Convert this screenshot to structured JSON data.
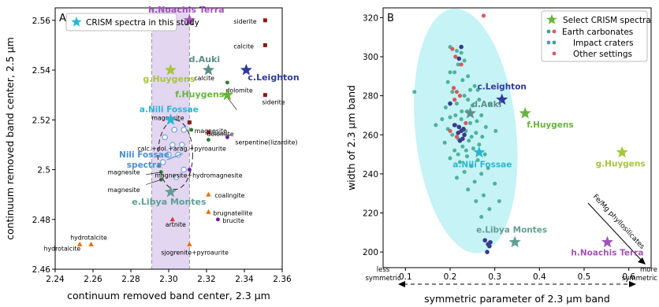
{
  "colors": {
    "carbonate": "#8b1a1a",
    "serpentine": "#2e7d32",
    "hydrotalcite": "#ef6c00",
    "purple_mineral": "#6a1b9a",
    "cyan_star": "#29b6d6",
    "band": "#d9c8ec",
    "ellipse_b": "#c6f3f5",
    "blue_pt": "#5b8fd6",
    "red_pt": "#d65a5a",
    "teal_pt": "#3aa48c"
  },
  "chart_data": [
    {
      "type": "scatter",
      "panel_label": "A",
      "xlabel": "continuum removed band center, 2.3 µm",
      "ylabel": "continuum removed band center, 2.5 µm",
      "xlim": [
        2.24,
        2.36
      ],
      "ylim": [
        2.46,
        2.565
      ],
      "xticks": [
        "2.24",
        "2.26",
        "2.28",
        "2.30",
        "2.32",
        "2.34",
        "2.36"
      ],
      "yticks": [
        "2.46",
        "2.48",
        "2.5",
        "2.52",
        "2.54",
        "2.56"
      ],
      "shaded_band": [
        2.291,
        2.311
      ],
      "legend": {
        "label": "CRISM spectra in this study",
        "position": "top-left"
      },
      "crism_stars": [
        {
          "label": "h.Noachis Terra",
          "x": 2.311,
          "y": 2.56,
          "color": "#a452b8"
        },
        {
          "label": "c.Leighton",
          "x": 2.341,
          "y": 2.54,
          "color": "#2f3a9a"
        },
        {
          "label": "d.Auki",
          "x": 2.321,
          "y": 2.54,
          "color": "#5c8e8a"
        },
        {
          "label": "g.Huygens",
          "x": 2.301,
          "y": 2.54,
          "color": "#a6c63a"
        },
        {
          "label": "f.Huygens",
          "x": 2.331,
          "y": 2.53,
          "color": "#66b53c"
        },
        {
          "label": "a.Nili Fossae",
          "x": 2.301,
          "y": 2.52,
          "color": "#29b6d6"
        },
        {
          "label": "e.Libya Montes",
          "x": 2.301,
          "y": 2.491,
          "color": "#5f9e94"
        }
      ],
      "nili_cluster_label": [
        "Nili Fossae",
        "spectra"
      ],
      "nili_points": [
        {
          "x": 2.303,
          "y": 2.516
        },
        {
          "x": 2.308,
          "y": 2.516
        },
        {
          "x": 2.298,
          "y": 2.513
        },
        {
          "x": 2.302,
          "y": 2.51
        },
        {
          "x": 2.307,
          "y": 2.51
        },
        {
          "x": 2.3,
          "y": 2.506
        },
        {
          "x": 2.305,
          "y": 2.506
        },
        {
          "x": 2.297,
          "y": 2.503
        },
        {
          "x": 2.308,
          "y": 2.5
        },
        {
          "x": 2.304,
          "y": 2.497
        }
      ],
      "reference_minerals": [
        {
          "label": "siderite",
          "x": 2.351,
          "y": 2.56,
          "marker": "square",
          "color": "#8b1a1a"
        },
        {
          "label": "calcite",
          "x": 2.351,
          "y": 2.55,
          "marker": "square",
          "color": "#8b1a1a"
        },
        {
          "label": "calcite",
          "x": 2.331,
          "y": 2.535,
          "marker": "circle",
          "color": "#2e7d32"
        },
        {
          "label": "dolomite",
          "x": 2.331,
          "y": 2.53,
          "marker": "circle",
          "color": "#2e7d32"
        },
        {
          "label": "siderite",
          "x": 2.351,
          "y": 2.53,
          "marker": "square",
          "color": "#8b1a1a"
        },
        {
          "label": "magnesite",
          "x": 2.311,
          "y": 2.519,
          "marker": "square",
          "color": "#8b1a1a"
        },
        {
          "label": "magnesite",
          "x": 2.312,
          "y": 2.516,
          "marker": "circle",
          "color": "#2e7d32"
        },
        {
          "label": "dolomite",
          "x": 2.321,
          "y": 2.515,
          "marker": "square",
          "color": "#8b1a1a"
        },
        {
          "label": "serpentine(lizardite)",
          "x": 2.331,
          "y": 2.513,
          "marker": "circle",
          "color": "#6a1b9a"
        },
        {
          "label": "calc.+dol.+arag.+pyroaurite",
          "x": 2.321,
          "y": 2.512,
          "marker": "circle",
          "color": "#2e7d32"
        },
        {
          "label": "magnesite",
          "x": 2.296,
          "y": 2.499,
          "marker": "circle",
          "color": "#2e7d32"
        },
        {
          "label": "magnesite+hydromagnesite",
          "x": 2.311,
          "y": 2.5,
          "marker": "circle",
          "color": "#6a1b9a"
        },
        {
          "label": "magnesite",
          "x": 2.296,
          "y": 2.496,
          "marker": "circle",
          "color": "#2e7d32"
        },
        {
          "label": "coalingite",
          "x": 2.321,
          "y": 2.49,
          "marker": "triangle",
          "color": "#ef6c00"
        },
        {
          "label": "brugnatellite",
          "x": 2.321,
          "y": 2.483,
          "marker": "triangle",
          "color": "#ef6c00"
        },
        {
          "label": "brucite",
          "x": 2.326,
          "y": 2.48,
          "marker": "circle",
          "color": "#6a1b9a"
        },
        {
          "label": "artnite",
          "x": 2.302,
          "y": 2.48,
          "marker": "triangle",
          "color": "#e53935"
        },
        {
          "label": "hydrotalcite",
          "x": 2.253,
          "y": 2.47,
          "marker": "triangle",
          "color": "#ef6c00"
        },
        {
          "label": "hydrotalcite",
          "x": 2.259,
          "y": 2.47,
          "marker": "triangle",
          "color": "#ef6c00"
        },
        {
          "label": "sjogrenite+pyroaurite",
          "x": 2.311,
          "y": 2.47,
          "marker": "triangle",
          "color": "#ef6c00"
        }
      ]
    },
    {
      "type": "scatter",
      "panel_label": "B",
      "xlabel": "symmetric parameter of 2.3 µm band",
      "ylabel": "width of 2.3 µm band",
      "xlim": [
        0.05,
        0.65
      ],
      "ylim": [
        192,
        325
      ],
      "xticks": [
        "0.1",
        "0.2",
        "0.3",
        "0.4",
        "0.5",
        "0.6"
      ],
      "yticks": [
        "200",
        "220",
        "240",
        "260",
        "280",
        "300",
        "320"
      ],
      "axis_ends": {
        "left": [
          "less",
          "symmetric"
        ],
        "right": [
          "more",
          "symmetric"
        ]
      },
      "arrow_annotation": "Fe/Mg phyllosilicates",
      "legend": {
        "position": "top-right",
        "items": [
          "Select CRISM spectra",
          "Earth carbonates",
          "Impact craters",
          "Other settings"
        ]
      },
      "crism_stars": [
        {
          "label": "c.Leighton",
          "x": 0.316,
          "y": 278,
          "color": "#2f3a9a"
        },
        {
          "label": "d.Auki",
          "x": 0.245,
          "y": 271,
          "color": "#5c8e8a"
        },
        {
          "label": "f.Huygens",
          "x": 0.368,
          "y": 271,
          "color": "#66b53c"
        },
        {
          "label": "a.Nili Fossae",
          "x": 0.265,
          "y": 251,
          "color": "#29b6d6"
        },
        {
          "label": "g.Huygens",
          "x": 0.585,
          "y": 251,
          "color": "#a6c63a"
        },
        {
          "label": "e.Libya Montes",
          "x": 0.345,
          "y": 205,
          "color": "#5f9e94"
        },
        {
          "label": "h.Noachis Terra",
          "x": 0.552,
          "y": 205,
          "color": "#a452b8"
        }
      ],
      "other_points": [
        {
          "x": 0.275,
          "y": 321
        },
        {
          "x": 0.205,
          "y": 304
        },
        {
          "x": 0.212,
          "y": 300
        },
        {
          "x": 0.225,
          "y": 296
        },
        {
          "x": 0.208,
          "y": 284
        },
        {
          "x": 0.215,
          "y": 282
        },
        {
          "x": 0.222,
          "y": 280
        },
        {
          "x": 0.21,
          "y": 278
        },
        {
          "x": 0.235,
          "y": 266
        },
        {
          "x": 0.2,
          "y": 262
        },
        {
          "x": 0.215,
          "y": 259
        }
      ],
      "impact_points": [
        {
          "x": 0.22,
          "y": 264
        },
        {
          "x": 0.225,
          "y": 262
        },
        {
          "x": 0.218,
          "y": 261
        },
        {
          "x": 0.23,
          "y": 263
        },
        {
          "x": 0.232,
          "y": 260
        },
        {
          "x": 0.21,
          "y": 265
        },
        {
          "x": 0.228,
          "y": 258
        },
        {
          "x": 0.222,
          "y": 257
        },
        {
          "x": 0.278,
          "y": 206
        },
        {
          "x": 0.285,
          "y": 204
        },
        {
          "x": 0.29,
          "y": 205
        },
        {
          "x": 0.283,
          "y": 200
        },
        {
          "x": 0.288,
          "y": 203
        },
        {
          "x": 0.22,
          "y": 299
        },
        {
          "x": 0.225,
          "y": 305
        },
        {
          "x": 0.2,
          "y": 276
        }
      ],
      "earth_points": [
        {
          "x": 0.2,
          "y": 305
        },
        {
          "x": 0.215,
          "y": 303
        },
        {
          "x": 0.225,
          "y": 302
        },
        {
          "x": 0.232,
          "y": 298
        },
        {
          "x": 0.218,
          "y": 296
        },
        {
          "x": 0.21,
          "y": 292
        },
        {
          "x": 0.24,
          "y": 290
        },
        {
          "x": 0.228,
          "y": 288
        },
        {
          "x": 0.195,
          "y": 287
        },
        {
          "x": 0.255,
          "y": 285
        },
        {
          "x": 0.245,
          "y": 283
        },
        {
          "x": 0.205,
          "y": 282
        },
        {
          "x": 0.232,
          "y": 280
        },
        {
          "x": 0.265,
          "y": 278
        },
        {
          "x": 0.215,
          "y": 276
        },
        {
          "x": 0.25,
          "y": 275
        },
        {
          "x": 0.19,
          "y": 274
        },
        {
          "x": 0.238,
          "y": 272
        },
        {
          "x": 0.27,
          "y": 270
        },
        {
          "x": 0.2,
          "y": 269
        },
        {
          "x": 0.225,
          "y": 268
        },
        {
          "x": 0.26,
          "y": 267
        },
        {
          "x": 0.245,
          "y": 266
        },
        {
          "x": 0.212,
          "y": 265
        },
        {
          "x": 0.28,
          "y": 264
        },
        {
          "x": 0.195,
          "y": 263
        },
        {
          "x": 0.235,
          "y": 262
        },
        {
          "x": 0.258,
          "y": 261
        },
        {
          "x": 0.205,
          "y": 260
        },
        {
          "x": 0.272,
          "y": 259
        },
        {
          "x": 0.218,
          "y": 258
        },
        {
          "x": 0.242,
          "y": 257
        },
        {
          "x": 0.188,
          "y": 256
        },
        {
          "x": 0.265,
          "y": 255
        },
        {
          "x": 0.228,
          "y": 254
        },
        {
          "x": 0.252,
          "y": 253
        },
        {
          "x": 0.21,
          "y": 252
        },
        {
          "x": 0.278,
          "y": 250
        },
        {
          "x": 0.238,
          "y": 249
        },
        {
          "x": 0.2,
          "y": 248
        },
        {
          "x": 0.262,
          "y": 247
        },
        {
          "x": 0.222,
          "y": 246
        },
        {
          "x": 0.248,
          "y": 244
        },
        {
          "x": 0.285,
          "y": 243
        },
        {
          "x": 0.232,
          "y": 241
        },
        {
          "x": 0.27,
          "y": 240
        },
        {
          "x": 0.215,
          "y": 238
        },
        {
          "x": 0.255,
          "y": 236
        },
        {
          "x": 0.3,
          "y": 235
        },
        {
          "x": 0.24,
          "y": 232
        },
        {
          "x": 0.275,
          "y": 229
        },
        {
          "x": 0.258,
          "y": 226
        },
        {
          "x": 0.288,
          "y": 222
        },
        {
          "x": 0.27,
          "y": 218
        },
        {
          "x": 0.302,
          "y": 262
        },
        {
          "x": 0.182,
          "y": 268
        },
        {
          "x": 0.29,
          "y": 276
        },
        {
          "x": 0.168,
          "y": 265
        },
        {
          "x": 0.12,
          "y": 282
        },
        {
          "x": 0.31,
          "y": 226
        },
        {
          "x": 0.24,
          "y": 278
        },
        {
          "x": 0.226,
          "y": 272
        },
        {
          "x": 0.212,
          "y": 270
        },
        {
          "x": 0.248,
          "y": 259
        },
        {
          "x": 0.236,
          "y": 252
        },
        {
          "x": 0.2,
          "y": 292
        },
        {
          "x": 0.262,
          "y": 283
        },
        {
          "x": 0.218,
          "y": 250
        }
      ]
    }
  ]
}
